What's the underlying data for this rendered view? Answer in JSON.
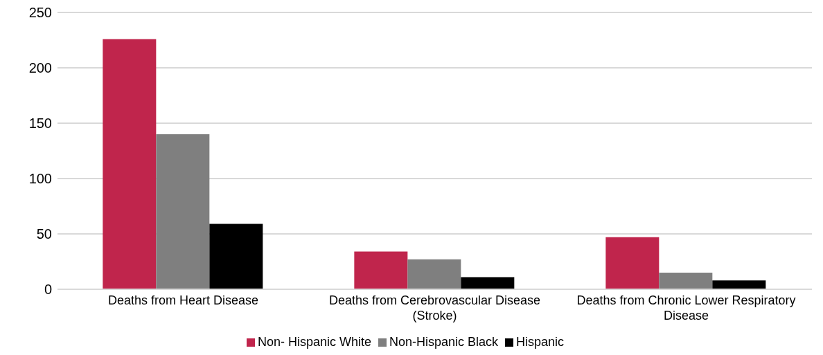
{
  "chart_data": {
    "type": "bar",
    "categories": [
      "Deaths from Heart Disease",
      "Deaths from Cerebrovascular Disease (Stroke)",
      "Deaths from Chronic Lower Respiratory Disease"
    ],
    "series": [
      {
        "name": "Non- Hispanic White",
        "color": "#c0254c",
        "values": [
          226,
          34,
          47
        ]
      },
      {
        "name": "Non-Hispanic Black",
        "color": "#7f7f7f",
        "values": [
          140,
          27,
          15
        ]
      },
      {
        "name": "Hispanic",
        "color": "#000000",
        "values": [
          59,
          11,
          8
        ]
      }
    ],
    "ylim": [
      0,
      250
    ],
    "yticks": [
      0,
      50,
      100,
      150,
      200,
      250
    ],
    "grid": "y",
    "legend": "bottom"
  }
}
